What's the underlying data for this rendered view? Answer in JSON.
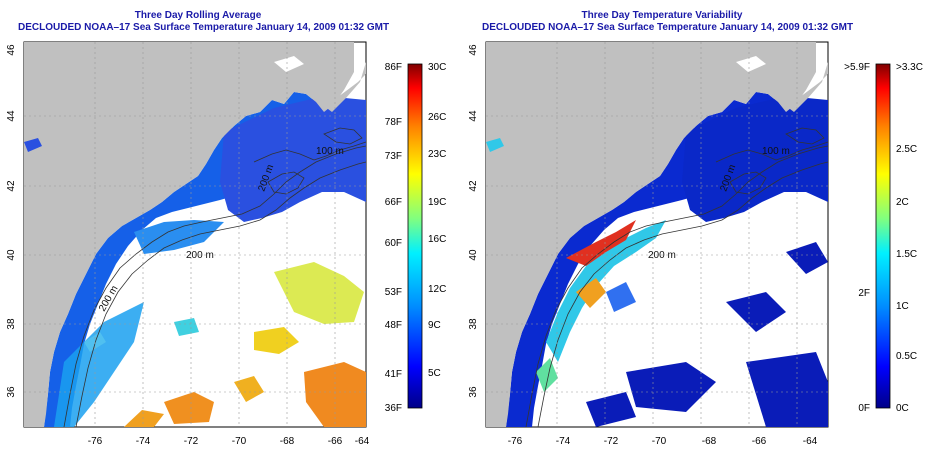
{
  "left_panel": {
    "title_line1": "Three Day Rolling Average",
    "title_line2": "DECLOUDED NOAA–17 Sea Surface Temperature January 14, 2009 01:32 GMT",
    "colorbar": {
      "left_labels": [
        "86F",
        "78F",
        "73F",
        "66F",
        "60F",
        "53F",
        "48F",
        "41F",
        "36F"
      ],
      "right_labels": [
        "30C",
        "26C",
        "23C",
        "19C",
        "16C",
        "12C",
        "9C",
        "5C"
      ]
    }
  },
  "right_panel": {
    "title_line1": "Three Day Temperature Variability",
    "title_line2": "DECLOUDED NOAA–17 Sea Surface Temperature January 14, 2009 01:32 GMT",
    "colorbar": {
      "left_labels": [
        ">5.9F",
        "2F",
        "0F"
      ],
      "right_labels": [
        ">3.3C",
        "2.5C",
        "2C",
        "1.5C",
        "1C",
        "0.5C",
        "0C"
      ]
    }
  },
  "axes": {
    "lon_ticks": [
      "-76",
      "-74",
      "-72",
      "-70",
      "-68",
      "-66",
      "-64"
    ],
    "lat_ticks": [
      "36",
      "38",
      "40",
      "42",
      "44",
      "46"
    ]
  },
  "contour_labels": {
    "left": [
      "100 m",
      "200 m",
      "200 m",
      "200 m"
    ],
    "right": [
      "100 m",
      "200 m",
      "200 m"
    ]
  },
  "colors": {
    "land": "#c0c0c0",
    "title": "#1a1aa8",
    "contour": "#333333"
  }
}
